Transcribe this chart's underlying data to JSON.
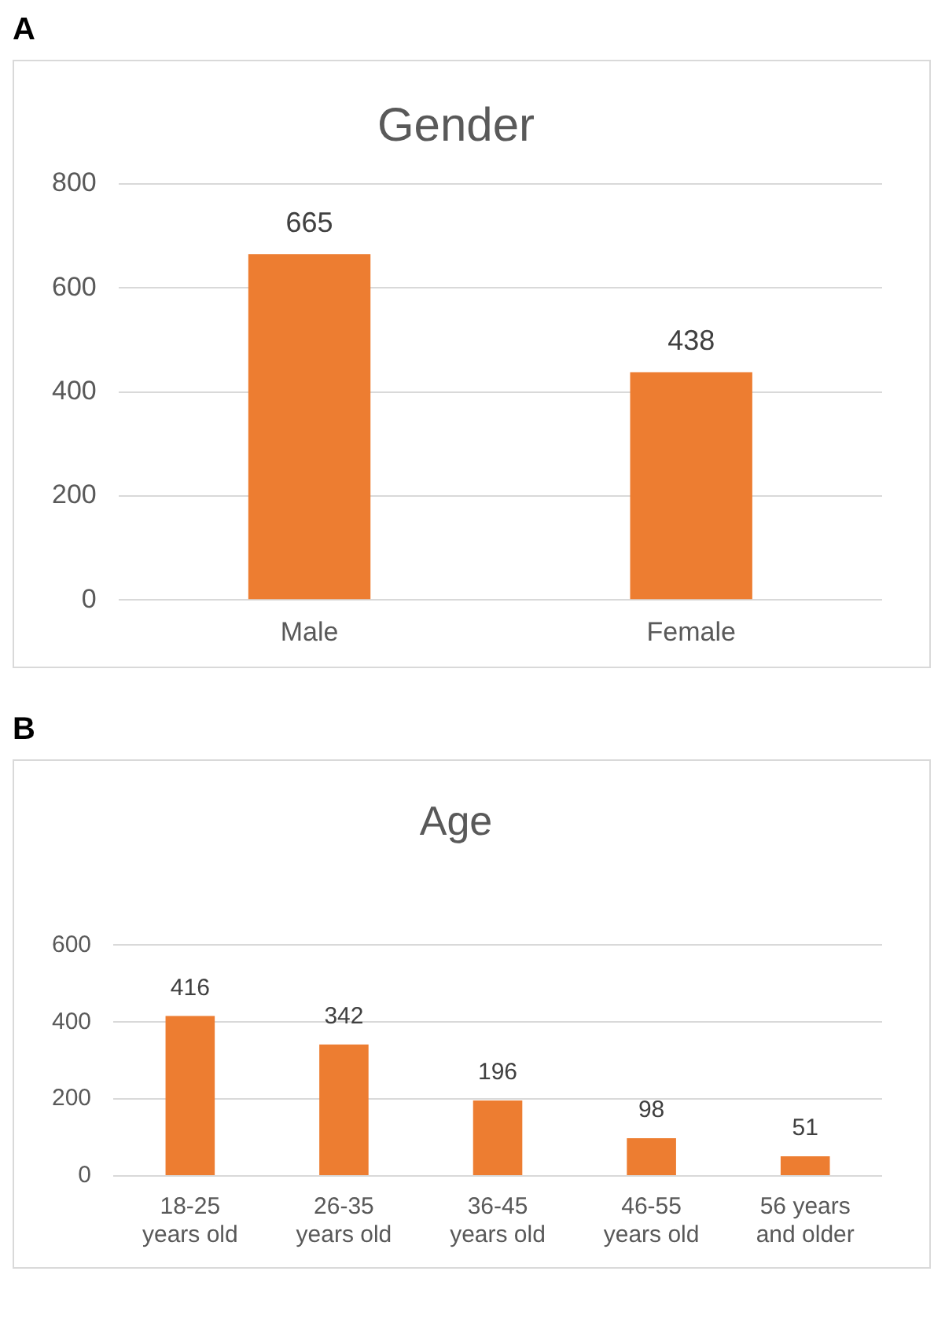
{
  "chart_data": [
    {
      "type": "bar",
      "title": "Gender",
      "annotations": [
        "A"
      ],
      "categories": [
        "Male",
        "Female"
      ],
      "values": [
        665,
        438
      ],
      "color": "#ed7d31",
      "ylim": [
        0,
        800
      ],
      "yticks": [
        0,
        200,
        400,
        600,
        800
      ],
      "grid": "y",
      "data_labels": true,
      "legend": false
    },
    {
      "type": "bar",
      "title": "Age",
      "annotations": [
        "B"
      ],
      "categories": [
        "18-25 years old",
        "26-35 years old",
        "36-45 years old",
        "46-55 years old",
        "56 years and older"
      ],
      "values": [
        416,
        342,
        196,
        98,
        51
      ],
      "color": "#ed7d31",
      "ylim": [
        0,
        600
      ],
      "yticks": [
        0,
        200,
        400,
        600
      ],
      "grid": "y",
      "data_labels": true,
      "legend": false
    }
  ]
}
